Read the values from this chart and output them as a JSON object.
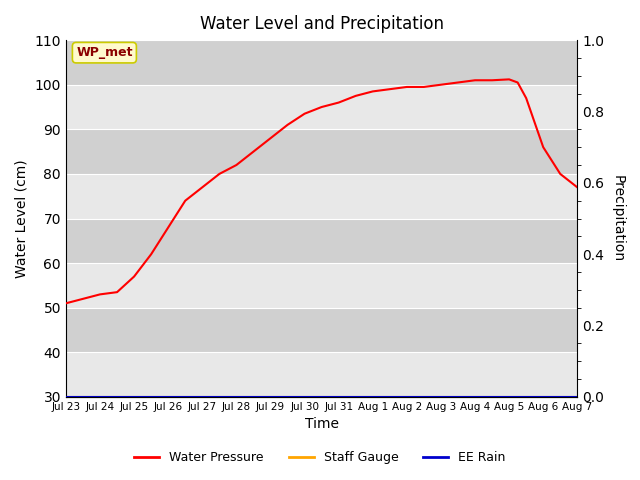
{
  "title": "Water Level and Precipitation",
  "xlabel": "Time",
  "ylabel_left": "Water Level (cm)",
  "ylabel_right": "Precipitation",
  "annotation_text": "WP_met",
  "annotation_color": "#8B0000",
  "annotation_bg": "#FFFACD",
  "annotation_edge": "#CCCC00",
  "ylim_left": [
    30,
    110
  ],
  "ylim_right": [
    0.0,
    1.0
  ],
  "yticks_left": [
    30,
    40,
    50,
    60,
    70,
    80,
    90,
    100,
    110
  ],
  "yticks_right": [
    0.0,
    0.2,
    0.4,
    0.6,
    0.8,
    1.0
  ],
  "x_labels": [
    "Jul 23",
    "Jul 24",
    "Jul 25",
    "Jul 26",
    "Jul 27",
    "Jul 28",
    "Jul 29",
    "Jul 30",
    "Jul 31",
    "Aug 1",
    "Aug 2",
    "Aug 3",
    "Aug 4",
    "Aug 5",
    "Aug 6",
    "Aug 7"
  ],
  "water_pressure_x": [
    0,
    0.5,
    1,
    1.5,
    2,
    2.5,
    3,
    3.5,
    4,
    4.5,
    5,
    5.5,
    6,
    6.5,
    7,
    7.5,
    8,
    8.5,
    9,
    9.5,
    10,
    10.5,
    11,
    11.5,
    12,
    12.5,
    13,
    13.25,
    13.5,
    14,
    14.5,
    15
  ],
  "water_pressure_y": [
    51,
    52,
    53,
    53.5,
    57,
    62,
    68,
    74,
    77,
    80,
    82,
    85,
    88,
    91,
    93.5,
    95,
    96,
    97.5,
    98.5,
    99,
    99.5,
    99.5,
    100,
    100.5,
    101,
    101,
    101.2,
    100.5,
    97,
    86,
    80,
    77
  ],
  "water_pressure_color": "#FF0000",
  "staff_gauge_color": "#FFA500",
  "ee_rain_color": "#0000CD",
  "plot_bg_color": "#DCDCDC",
  "band_color_light": "#E8E8E8",
  "band_color_dark": "#D0D0D0",
  "grid_color": "#FFFFFF",
  "legend_labels": [
    "Water Pressure",
    "Staff Gauge",
    "EE Rain"
  ]
}
